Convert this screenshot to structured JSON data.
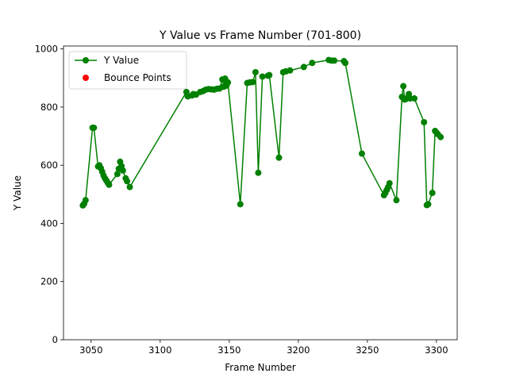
{
  "chart_data": {
    "type": "line",
    "title": "Y Value vs Frame Number (701-800)",
    "xlabel": "Frame Number",
    "ylabel": "Y Value",
    "xlim": [
      3030,
      3315
    ],
    "ylim": [
      0,
      1010
    ],
    "xticks": [
      3050,
      3100,
      3150,
      3200,
      3250,
      3300
    ],
    "yticks": [
      0,
      200,
      400,
      600,
      800,
      1000
    ],
    "legend_position": "upper-left",
    "grid": false,
    "series": [
      {
        "name": "Y Value",
        "type": "line",
        "marker": "circle",
        "color": "#008000",
        "points": [
          [
            3044,
            462
          ],
          [
            3045,
            468
          ],
          [
            3046,
            480
          ],
          [
            3051,
            729
          ],
          [
            3052,
            729
          ],
          [
            3055,
            596
          ],
          [
            3056,
            600
          ],
          [
            3057,
            590
          ],
          [
            3058,
            578
          ],
          [
            3059,
            565
          ],
          [
            3060,
            555
          ],
          [
            3061,
            548
          ],
          [
            3062,
            540
          ],
          [
            3063,
            533
          ],
          [
            3069,
            570
          ],
          [
            3070,
            588
          ],
          [
            3071,
            612
          ],
          [
            3072,
            597
          ],
          [
            3073,
            582
          ],
          [
            3075,
            555
          ],
          [
            3076,
            545
          ],
          [
            3078,
            525
          ],
          [
            3119,
            852
          ],
          [
            3120,
            837
          ],
          [
            3123,
            840
          ],
          [
            3124,
            845
          ],
          [
            3126,
            843
          ],
          [
            3129,
            852
          ],
          [
            3131,
            855
          ],
          [
            3133,
            860
          ],
          [
            3135,
            862
          ],
          [
            3137,
            861
          ],
          [
            3139,
            860
          ],
          [
            3141,
            863
          ],
          [
            3143,
            864
          ],
          [
            3145,
            895
          ],
          [
            3146,
            870
          ],
          [
            3147,
            898
          ],
          [
            3148,
            874
          ],
          [
            3149,
            885
          ],
          [
            3158,
            466
          ],
          [
            3163,
            883
          ],
          [
            3165,
            885
          ],
          [
            3167,
            886
          ],
          [
            3169,
            920
          ],
          [
            3171,
            574
          ],
          [
            3174,
            905
          ],
          [
            3178,
            908
          ],
          [
            3179,
            910
          ],
          [
            3186,
            626
          ],
          [
            3189,
            920
          ],
          [
            3191,
            923
          ],
          [
            3194,
            926
          ],
          [
            3204,
            938
          ],
          [
            3210,
            952
          ],
          [
            3222,
            962
          ],
          [
            3224,
            960
          ],
          [
            3226,
            960
          ],
          [
            3233,
            958
          ],
          [
            3234,
            952
          ],
          [
            3246,
            640
          ],
          [
            3262,
            497
          ],
          [
            3263,
            505
          ],
          [
            3264,
            515
          ],
          [
            3265,
            525
          ],
          [
            3266,
            538
          ],
          [
            3271,
            480
          ],
          [
            3275,
            835
          ],
          [
            3276,
            872
          ],
          [
            3277,
            826
          ],
          [
            3278,
            828
          ],
          [
            3279,
            832
          ],
          [
            3280,
            845
          ],
          [
            3281,
            830
          ],
          [
            3284,
            830
          ],
          [
            3291,
            748
          ],
          [
            3293,
            463
          ],
          [
            3294,
            466
          ],
          [
            3297,
            505
          ],
          [
            3299,
            718
          ],
          [
            3300,
            712
          ],
          [
            3301,
            707
          ],
          [
            3303,
            697
          ]
        ]
      },
      {
        "name": "Bounce Points",
        "type": "scatter",
        "marker": "circle",
        "color": "#ff0000",
        "points": []
      }
    ]
  }
}
